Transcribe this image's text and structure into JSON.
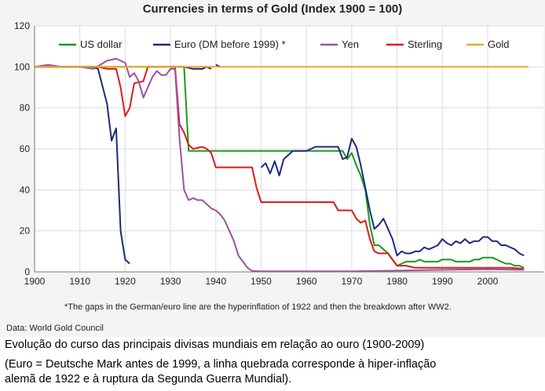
{
  "chart_data": {
    "type": "line",
    "title": "Currencies in terms of Gold (Index 1900 = 100)",
    "xlim": [
      1900,
      2009
    ],
    "ylim": [
      0,
      120
    ],
    "x_ticks": [
      "1900",
      "1910",
      "1920",
      "1930",
      "1940",
      "1950",
      "1960",
      "1970",
      "1980",
      "1990",
      "2000"
    ],
    "y_ticks": [
      "0",
      "20",
      "40",
      "60",
      "80",
      "100",
      "120"
    ],
    "grid": true,
    "legend_position": "top",
    "series": [
      {
        "name": "US dollar",
        "color": "#1a9a1a",
        "segments": [
          [
            [
              1900,
              100
            ],
            [
              1933,
              100
            ],
            [
              1934,
              59
            ],
            [
              1968,
              59
            ],
            [
              1969,
              55
            ],
            [
              1970,
              58
            ],
            [
              1971,
              52
            ],
            [
              1972,
              47
            ],
            [
              1973,
              40
            ],
            [
              1974,
              23
            ],
            [
              1975,
              13
            ],
            [
              1976,
              13
            ],
            [
              1977,
              11
            ],
            [
              1978,
              9
            ],
            [
              1979,
              6
            ],
            [
              1980,
              3
            ],
            [
              1981,
              4
            ],
            [
              1982,
              5
            ],
            [
              1983,
              5
            ],
            [
              1984,
              5
            ],
            [
              1985,
              6
            ],
            [
              1986,
              5
            ],
            [
              1987,
              5
            ],
            [
              1988,
              5
            ],
            [
              1989,
              5
            ],
            [
              1990,
              6
            ],
            [
              1991,
              6
            ],
            [
              1992,
              6
            ],
            [
              1993,
              5
            ],
            [
              1994,
              5
            ],
            [
              1995,
              5
            ],
            [
              1996,
              5
            ],
            [
              1997,
              6
            ],
            [
              1998,
              6
            ],
            [
              1999,
              7
            ],
            [
              2000,
              7
            ],
            [
              2001,
              7
            ],
            [
              2002,
              6
            ],
            [
              2003,
              5
            ],
            [
              2004,
              4
            ],
            [
              2005,
              4
            ],
            [
              2006,
              3
            ],
            [
              2007,
              3
            ],
            [
              2008,
              2
            ]
          ]
        ]
      },
      {
        "name": "Euro (DM before 1999) *",
        "color": "#1c2a7c",
        "segments": [
          [
            [
              1900,
              100
            ],
            [
              1913,
              100
            ],
            [
              1914,
              99
            ],
            [
              1916,
              82
            ],
            [
              1917,
              64
            ],
            [
              1918,
              70
            ],
            [
              1919,
              20
            ],
            [
              1920,
              6
            ],
            [
              1921,
              4
            ]
          ],
          [
            [
              1930,
              100
            ],
            [
              1933,
              100
            ],
            [
              1935,
              99
            ],
            [
              1937,
              99
            ],
            [
              1938,
              100
            ],
            [
              1939,
              99
            ]
          ],
          [
            [
              1940,
              101
            ],
            [
              1941,
              100
            ]
          ],
          [
            [
              1950,
              51
            ],
            [
              1951,
              53
            ],
            [
              1952,
              48
            ],
            [
              1953,
              54
            ],
            [
              1954,
              47
            ],
            [
              1955,
              55
            ],
            [
              1957,
              59
            ],
            [
              1960,
              59
            ],
            [
              1962,
              61
            ],
            [
              1964,
              61
            ],
            [
              1966,
              61
            ],
            [
              1967,
              61
            ],
            [
              1968,
              55
            ],
            [
              1969,
              56
            ],
            [
              1970,
              65
            ],
            [
              1971,
              61
            ],
            [
              1972,
              52
            ],
            [
              1973,
              41
            ],
            [
              1974,
              30
            ],
            [
              1975,
              21
            ],
            [
              1976,
              23
            ],
            [
              1977,
              26
            ],
            [
              1978,
              21
            ],
            [
              1979,
              16
            ],
            [
              1980,
              8
            ],
            [
              1981,
              10
            ],
            [
              1982,
              9
            ],
            [
              1983,
              9
            ],
            [
              1984,
              10
            ],
            [
              1985,
              10
            ],
            [
              1986,
              12
            ],
            [
              1987,
              11
            ],
            [
              1988,
              12
            ],
            [
              1989,
              13
            ],
            [
              1990,
              16
            ],
            [
              1991,
              14
            ],
            [
              1992,
              13
            ],
            [
              1993,
              15
            ],
            [
              1994,
              14
            ],
            [
              1995,
              16
            ],
            [
              1996,
              14
            ],
            [
              1997,
              15
            ],
            [
              1998,
              15
            ],
            [
              1999,
              17
            ],
            [
              2000,
              17
            ],
            [
              2001,
              15
            ],
            [
              2002,
              15
            ],
            [
              2003,
              13
            ],
            [
              2004,
              13
            ],
            [
              2005,
              12
            ],
            [
              2006,
              11
            ],
            [
              2007,
              9
            ],
            [
              2008,
              8
            ]
          ]
        ]
      },
      {
        "name": "Yen",
        "color": "#a0509a",
        "segments": [
          [
            [
              1900,
              100
            ],
            [
              1903,
              101
            ],
            [
              1906,
              100
            ],
            [
              1910,
              100
            ],
            [
              1913,
              99
            ],
            [
              1916,
              103
            ],
            [
              1918,
              104
            ],
            [
              1920,
              102
            ],
            [
              1921,
              95
            ],
            [
              1922,
              97
            ],
            [
              1923,
              93
            ],
            [
              1924,
              85
            ],
            [
              1925,
              90
            ],
            [
              1926,
              95
            ],
            [
              1927,
              98
            ],
            [
              1928,
              96
            ],
            [
              1929,
              96
            ],
            [
              1930,
              99
            ],
            [
              1931,
              99
            ],
            [
              1932,
              65
            ],
            [
              1933,
              40
            ],
            [
              1934,
              35
            ],
            [
              1935,
              36
            ],
            [
              1936,
              35
            ],
            [
              1937,
              35
            ],
            [
              1938,
              33
            ],
            [
              1939,
              31
            ],
            [
              1940,
              30
            ],
            [
              1941,
              28
            ],
            [
              1942,
              25
            ],
            [
              1943,
              20
            ],
            [
              1944,
              15
            ],
            [
              1945,
              8
            ],
            [
              1946,
              5
            ],
            [
              1947,
              2
            ],
            [
              1948,
              0.5
            ],
            [
              1950,
              0.3
            ],
            [
              1960,
              0.3
            ],
            [
              1970,
              0.3
            ],
            [
              1980,
              0.6
            ],
            [
              1990,
              1
            ],
            [
              2000,
              1.3
            ],
            [
              2008,
              1
            ]
          ]
        ]
      },
      {
        "name": "Sterling",
        "color": "#dd1a1a",
        "segments": [
          [
            [
              1900,
              100
            ],
            [
              1914,
              100
            ],
            [
              1916,
              99
            ],
            [
              1918,
              99
            ],
            [
              1919,
              90
            ],
            [
              1920,
              76
            ],
            [
              1921,
              80
            ],
            [
              1922,
              92
            ],
            [
              1924,
              93
            ],
            [
              1925,
              100
            ],
            [
              1931,
              100
            ],
            [
              1932,
              72
            ],
            [
              1933,
              68
            ],
            [
              1934,
              62
            ],
            [
              1935,
              60
            ],
            [
              1937,
              61
            ],
            [
              1938,
              60
            ],
            [
              1939,
              58
            ],
            [
              1940,
              51
            ],
            [
              1946,
              51
            ],
            [
              1948,
              51
            ],
            [
              1949,
              41
            ],
            [
              1950,
              34
            ],
            [
              1966,
              34
            ],
            [
              1967,
              30
            ],
            [
              1970,
              30
            ],
            [
              1971,
              26
            ],
            [
              1972,
              24
            ],
            [
              1973,
              25
            ],
            [
              1974,
              16
            ],
            [
              1975,
              10
            ],
            [
              1976,
              9
            ],
            [
              1977,
              9
            ],
            [
              1978,
              9
            ],
            [
              1979,
              6
            ],
            [
              1980,
              3
            ],
            [
              1982,
              3
            ],
            [
              1984,
              2
            ],
            [
              1990,
              2
            ],
            [
              2000,
              2
            ],
            [
              2005,
              2
            ],
            [
              2008,
              1.5
            ]
          ]
        ]
      },
      {
        "name": "Gold",
        "color": "#f0a820",
        "segments": [
          [
            [
              1900,
              100
            ],
            [
              2009,
              100
            ]
          ]
        ]
      }
    ],
    "footnote": "*The gaps in the German/euro line are the hyperinflation of 1922 and then the breakdown after WW2.",
    "source": "Data: World Gold Council"
  },
  "caption": {
    "line1": "Evolução do curso das principais divisas mundiais em relação ao ouro (1900-2009)",
    "line2": "(Euro = Deutsche Mark antes de 1999, a linha quebrada corresponde à hiper-inflação",
    "line3": "alemã de 1922 e à ruptura da Segunda Guerra Mundial)."
  }
}
